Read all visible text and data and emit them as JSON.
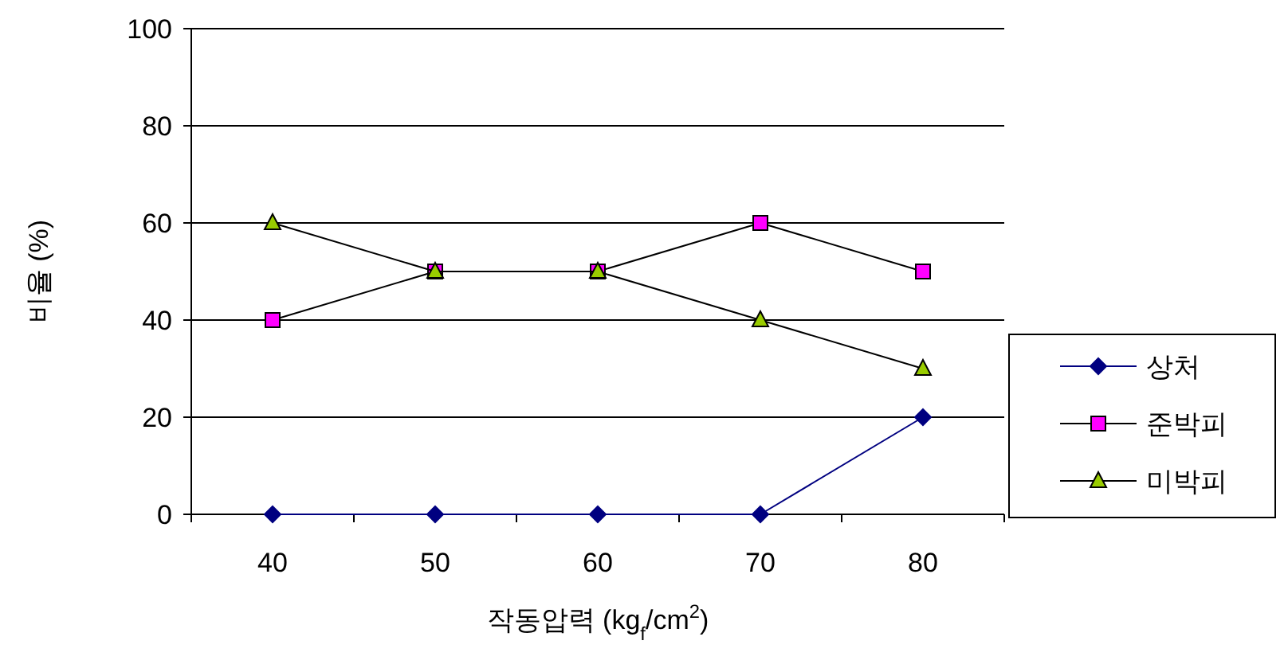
{
  "chart_data": {
    "type": "line",
    "xlabel": "작동압력 (kg$_{f}$/cm$^{2}$)",
    "ylabel": "비율 (%)",
    "categories": [
      "40",
      "50",
      "60",
      "70",
      "80"
    ],
    "ylim": [
      0,
      100
    ],
    "yticks": [
      0,
      20,
      40,
      60,
      80,
      100
    ],
    "grid": "y",
    "legend": "right",
    "series": [
      {
        "name": "상처",
        "color": "#000080",
        "values": [
          0,
          0,
          0,
          0,
          20
        ],
        "marker": "diamond"
      },
      {
        "name": "준박피",
        "color": "#ff00ff",
        "values": [
          40,
          50,
          50,
          60,
          50
        ],
        "marker": "square"
      },
      {
        "name": "미박피",
        "color": "#99cc00",
        "values": [
          60,
          50,
          50,
          40,
          30
        ],
        "marker": "triangle"
      }
    ]
  }
}
